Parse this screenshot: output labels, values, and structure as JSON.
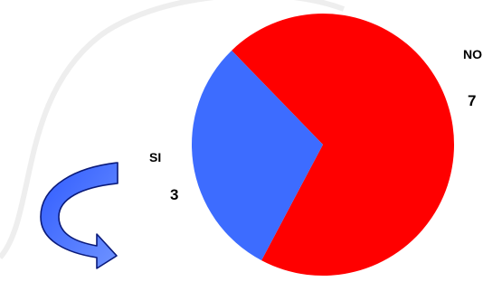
{
  "chart_data": {
    "type": "pie",
    "slices": [
      {
        "label": "NO",
        "value": 7,
        "color": "#ff0000"
      },
      {
        "label": "SI",
        "value": 3,
        "color": "#3d6cff"
      }
    ]
  },
  "decoration": {
    "arrow_icon_color": "#3d6cff"
  }
}
